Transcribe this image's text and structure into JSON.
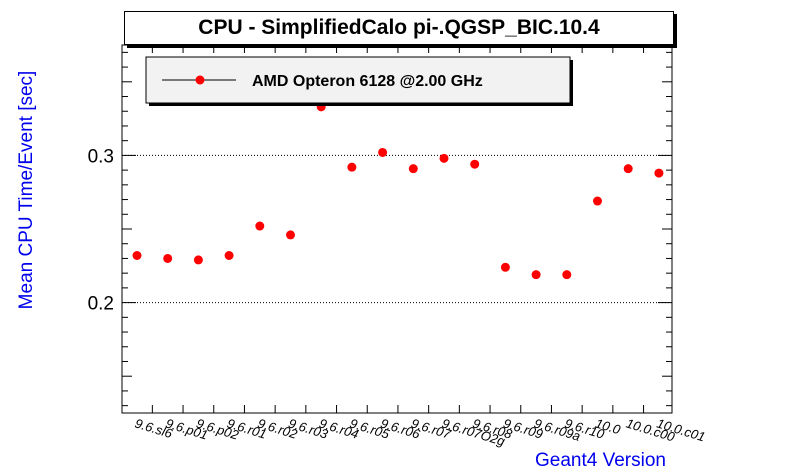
{
  "chart_data": {
    "type": "scatter",
    "title": "CPU - SimplifiedCalo pi-.QGSP_BIC.10.4",
    "xlabel": "Geant4 Version",
    "ylabel": "Mean CPU Time/Event [sec]",
    "ylim": [
      0.125,
      0.375
    ],
    "yticks": [
      0.2,
      0.3
    ],
    "ytick_labels": [
      "0.2",
      "0.3"
    ],
    "grid": "horizontal dotted at major y ticks",
    "legend_position": "top-left",
    "series": [
      {
        "name": "AMD Opteron 6128 @2.00 GHz",
        "color": "#ff0000",
        "marker": "circle",
        "categories": [
          "9.6.sl6",
          "9.6.p01",
          "9.6.p02",
          "9.6.r01",
          "9.6.r02",
          "9.6.r03",
          "9.6.r04",
          "9.6.r05",
          "9.6.r06",
          "9.6.r07",
          "9.6.r07O2g",
          "9.6.r08",
          "9.6.r09",
          "9.6.r09a",
          "9.6.r10",
          "10.0",
          "10.0.c00",
          "10.0.c01"
        ],
        "values": [
          0.232,
          0.23,
          0.229,
          0.232,
          0.252,
          0.246,
          0.333,
          0.292,
          0.302,
          0.291,
          0.298,
          0.294,
          0.224,
          0.219,
          0.219,
          0.269,
          0.291,
          0.288
        ]
      }
    ]
  },
  "colors": {
    "marker": "#ff0000",
    "axis_label": "#0000ee"
  }
}
